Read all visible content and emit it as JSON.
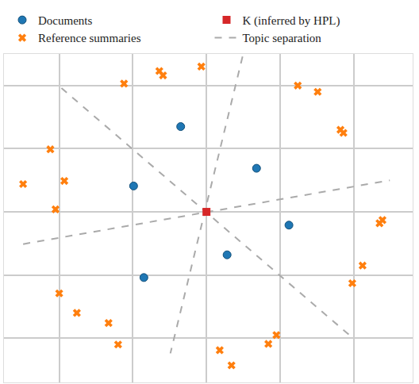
{
  "chart_data": {
    "type": "scatter",
    "xlim": [
      -2.75,
      2.8
    ],
    "ylim": [
      -2.7,
      2.5
    ],
    "xticks": [
      -2,
      -1,
      0,
      1,
      2
    ],
    "yticks": [
      -2,
      -1,
      0,
      1,
      2
    ],
    "grid": true,
    "tick_labels": false,
    "legend": "top",
    "series": [
      {
        "name": "Topic separation",
        "type": "line",
        "color": "#aaaaaa",
        "line_style": "dash",
        "x": [
          -1.97,
          1.98,
          null,
          0.49,
          -0.49,
          null,
          -2.49,
          2.49
        ],
        "y": [
          1.96,
          -1.99,
          null,
          2.46,
          -2.24,
          null,
          -0.51,
          0.5
        ]
      },
      {
        "name": "Reference summaries",
        "type": "scatter",
        "color": "#ff7f0e",
        "marker": "x",
        "x": [
          -1.12,
          -0.64,
          -0.59,
          -0.07,
          1.24,
          1.51,
          1.82,
          1.86,
          -2.12,
          -2.49,
          -1.93,
          -2.05,
          2.39,
          2.35,
          2.12,
          1.98,
          -2.0,
          -1.76,
          -1.33,
          -1.2,
          0.95,
          0.84,
          0.18,
          0.34
        ],
        "y": [
          2.03,
          2.23,
          2.16,
          2.3,
          2.0,
          1.9,
          1.3,
          1.25,
          0.99,
          0.44,
          0.49,
          0.04,
          -0.13,
          -0.18,
          -0.85,
          -1.13,
          -1.29,
          -1.6,
          -1.76,
          -2.1,
          -1.95,
          -2.09,
          -2.19,
          -2.43
        ]
      },
      {
        "name": "Documents",
        "type": "scatter",
        "color": "#1f77b4",
        "marker": "circle",
        "x": [
          -0.35,
          0.68,
          -0.99,
          1.12,
          0.28,
          -0.85
        ],
        "y": [
          1.35,
          0.69,
          0.41,
          -0.21,
          -0.68,
          -1.04
        ]
      },
      {
        "name": "K (inferred by HPL)",
        "type": "scatter",
        "color": "#d62728",
        "marker": "square",
        "x": [
          0
        ],
        "y": [
          0
        ]
      }
    ]
  }
}
